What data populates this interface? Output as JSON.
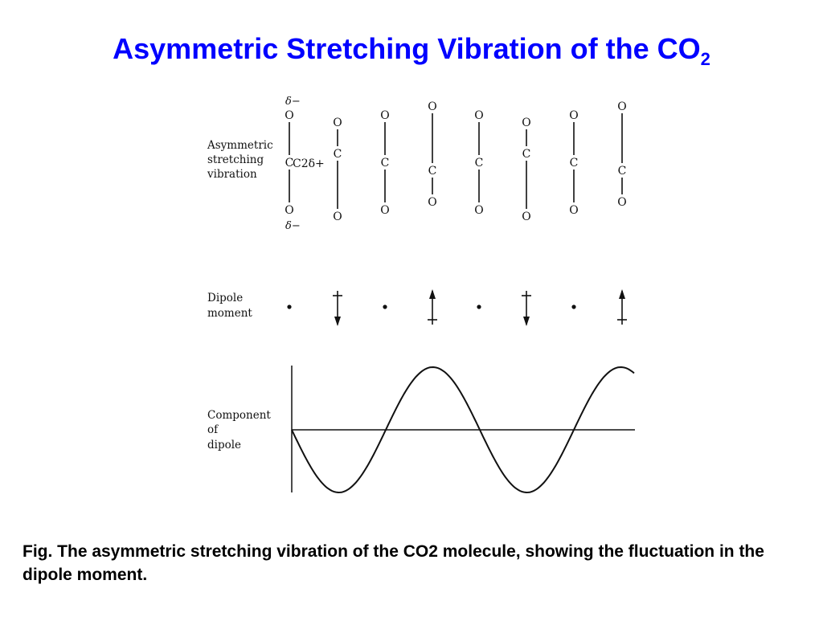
{
  "title": {
    "main": "Asymmetric Stretching Vibration of the CO",
    "subscript": "2"
  },
  "figure": {
    "labels": {
      "vibration": [
        "Asymmetric",
        "stretching",
        "vibration"
      ],
      "dipole": [
        "Dipole",
        "moment"
      ],
      "component": [
        "Component",
        "of",
        "dipole"
      ]
    },
    "charges": {
      "oxygen_top": "δ−",
      "carbon": "C2δ+",
      "oxygen_bottom": "δ−"
    },
    "atoms": {
      "oxygen": "O",
      "carbon": "C"
    },
    "frames": [
      {
        "carbon_position": "center",
        "dipole": "zero"
      },
      {
        "carbon_position": "up",
        "dipole": "down"
      },
      {
        "carbon_position": "center",
        "dipole": "zero"
      },
      {
        "carbon_position": "down",
        "dipole": "up"
      },
      {
        "carbon_position": "center",
        "dipole": "zero"
      },
      {
        "carbon_position": "up",
        "dipole": "down"
      },
      {
        "carbon_position": "center",
        "dipole": "zero"
      },
      {
        "carbon_position": "down",
        "dipole": "up"
      }
    ],
    "curve": {
      "type": "negative-sine",
      "cycles_shown": 2.25
    }
  },
  "caption": "Fig. The asymmetric stretching vibration of the CO2 molecule, showing the fluctuation in the dipole moment."
}
